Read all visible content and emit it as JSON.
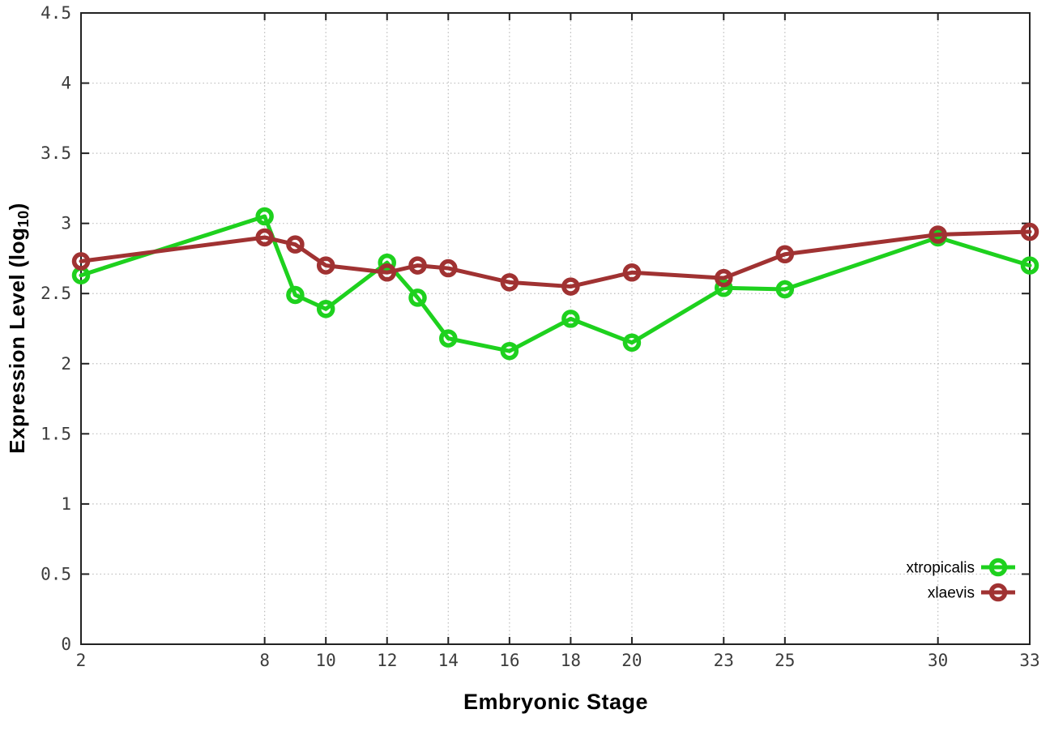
{
  "figure": {
    "xlabel": "Embryonic Stage",
    "ylabel_main": "Expression Level (log",
    "ylabel_sub": "10",
    "ylabel_end": ")"
  },
  "chart_data": {
    "type": "line",
    "title": "",
    "xlabel": "Embryonic Stage",
    "ylabel": "Expression Level (log10)",
    "x": [
      2,
      8,
      9,
      10,
      12,
      13,
      14,
      16,
      18,
      20,
      23,
      25,
      30,
      33
    ],
    "series": [
      {
        "name": "xtropicalis",
        "color": "#1ed11e",
        "values": [
          2.63,
          3.05,
          2.49,
          2.39,
          2.72,
          2.47,
          2.18,
          2.09,
          2.32,
          2.15,
          2.54,
          2.53,
          2.9,
          2.7
        ]
      },
      {
        "name": "xlaevis",
        "color": "#a03232",
        "values": [
          2.73,
          2.9,
          2.85,
          2.7,
          2.65,
          2.7,
          2.68,
          2.58,
          2.55,
          2.65,
          2.61,
          2.78,
          2.92,
          2.94
        ]
      }
    ],
    "xlim": [
      2,
      33
    ],
    "ylim": [
      0,
      4.5
    ],
    "x_ticks": [
      2,
      8,
      10,
      12,
      14,
      16,
      18,
      20,
      23,
      25,
      30,
      33
    ],
    "x_tick_labels": [
      "2",
      "8",
      "10",
      "12",
      "14",
      "16",
      "18",
      "20",
      "23",
      "25",
      "30",
      "33"
    ],
    "y_ticks": [
      0,
      0.5,
      1,
      1.5,
      2,
      2.5,
      3,
      3.5,
      4,
      4.5
    ],
    "y_tick_labels": [
      "0",
      "0.5",
      "1",
      "1.5",
      "2",
      "2.5",
      "3",
      "3.5",
      "4",
      "4.5"
    ],
    "grid": true,
    "legend_position": "bottom-right",
    "marker": "open-circle"
  },
  "style_colors": {
    "grid": "#bcbcbc",
    "border": "#222222",
    "tick_label": "#3c3c3c",
    "background": "#ffffff"
  }
}
